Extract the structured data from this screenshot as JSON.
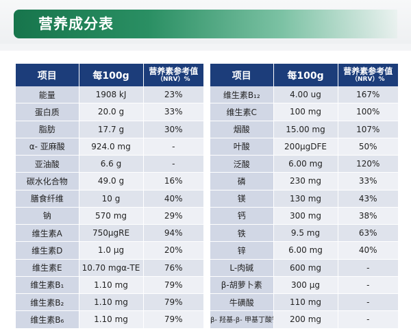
{
  "page": {
    "title": "营养成分表"
  },
  "headers": {
    "item": "项目",
    "per100g": "每100g",
    "nrv_main": "营养素参考值",
    "nrv_sub": "（NRV）%"
  },
  "left_rows": [
    {
      "name": "能量",
      "amount": "1908 kJ",
      "nrv": "23%"
    },
    {
      "name": "蛋白质",
      "amount": "20.0 g",
      "nrv": "33%"
    },
    {
      "name": "脂肪",
      "amount": "17.7 g",
      "nrv": "30%"
    },
    {
      "name": "α- 亚麻酸",
      "amount": "924.0 mg",
      "nrv": "-"
    },
    {
      "name": "亚油酸",
      "amount": "6.6 g",
      "nrv": "-"
    },
    {
      "name": "碳水化合物",
      "amount": "49.0 g",
      "nrv": "16%"
    },
    {
      "name": "膳食纤维",
      "amount": "10 g",
      "nrv": "40%"
    },
    {
      "name": "钠",
      "amount": "570 mg",
      "nrv": "29%"
    },
    {
      "name": "维生素A",
      "amount": "750μgRE",
      "nrv": "94%"
    },
    {
      "name": "维生素D",
      "amount": "1.0 μg",
      "nrv": "20%"
    },
    {
      "name": "维生素E",
      "amount": "10.70 mgα-TE",
      "nrv": "76%"
    },
    {
      "name": "维生素B₁",
      "amount": "1.10 mg",
      "nrv": "79%"
    },
    {
      "name": "维生素B₂",
      "amount": "1.10 mg",
      "nrv": "79%"
    },
    {
      "name": "维生素B₆",
      "amount": "1.10 mg",
      "nrv": "79%"
    }
  ],
  "right_rows": [
    {
      "name": "维生素B₁₂",
      "amount": "4.00 ug",
      "nrv": "167%"
    },
    {
      "name": "维生素C",
      "amount": "100 mg",
      "nrv": "100%"
    },
    {
      "name": "烟酸",
      "amount": "15.00 mg",
      "nrv": "107%"
    },
    {
      "name": "叶酸",
      "amount": "200μgDFE",
      "nrv": "50%"
    },
    {
      "name": "泛酸",
      "amount": "6.00 mg",
      "nrv": "120%"
    },
    {
      "name": "磷",
      "amount": "230 mg",
      "nrv": "33%"
    },
    {
      "name": "镁",
      "amount": "130 mg",
      "nrv": "43%"
    },
    {
      "name": "钙",
      "amount": "300 mg",
      "nrv": "38%"
    },
    {
      "name": "铁",
      "amount": "9.5 mg",
      "nrv": "63%"
    },
    {
      "name": "锌",
      "amount": "6.00 mg",
      "nrv": "40%"
    },
    {
      "name": "L-肉碱",
      "amount": "600 mg",
      "nrv": "-"
    },
    {
      "name": "β-胡萝卜素",
      "amount": "300 μg",
      "nrv": "-"
    },
    {
      "name": "牛磺酸",
      "amount": "110 mg",
      "nrv": "-"
    },
    {
      "name": "β- 羟基-β- 甲基丁酸钙",
      "amount": "200 mg",
      "nrv": "-",
      "small": true
    }
  ],
  "colors": {
    "header_bg": "#1c3d7a",
    "row_odd": "#dfe3ec",
    "row_even": "#eef0f5",
    "title_green": "#17754c"
  }
}
